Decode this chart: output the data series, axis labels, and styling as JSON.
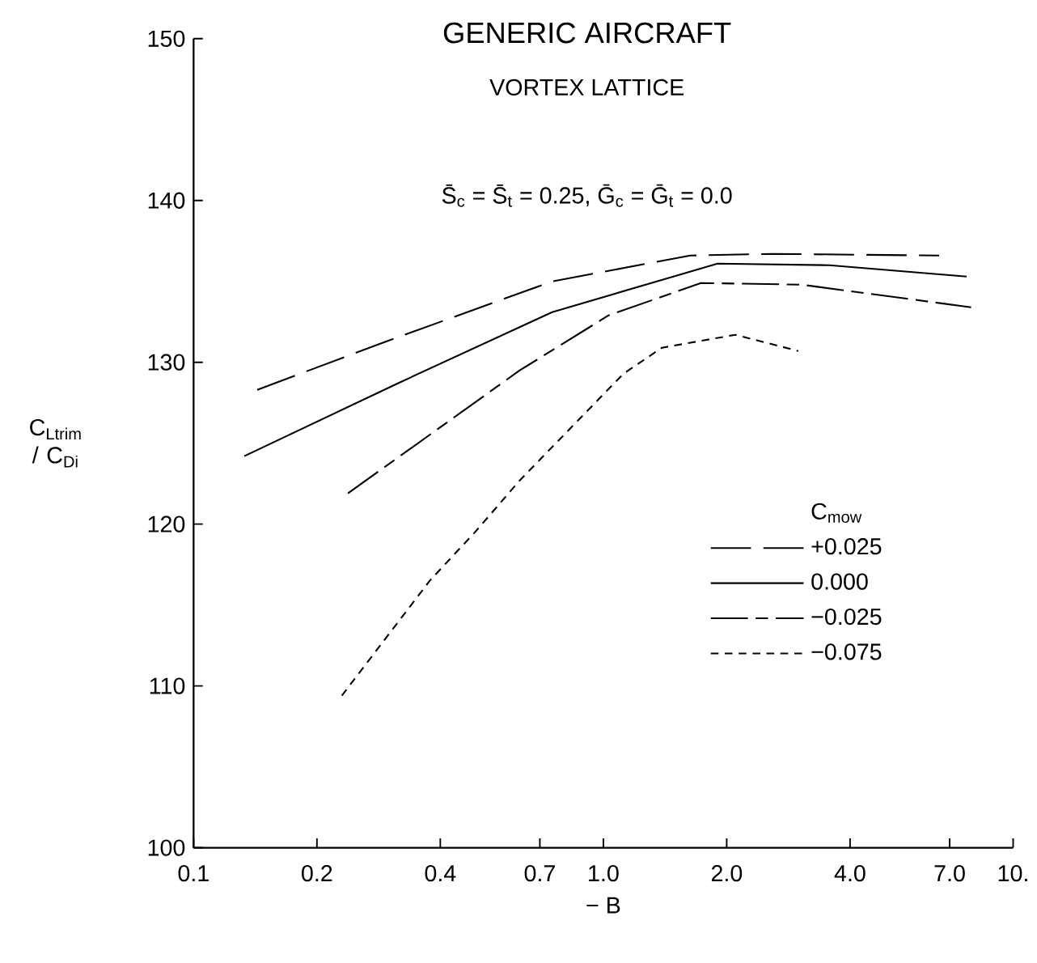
{
  "chart_data": {
    "type": "line",
    "title": "GENERIC AIRCRAFT",
    "subtitle": "VORTEX LATTICE",
    "xlabel": "− B",
    "ylabel": "C$_{Ltrim}$ / C$_{Di}$",
    "legend_title": "C$_{mow}$",
    "annotations": [
      "S̄$_{c}$ = S̄$_{t}$ = 0.25, Ḡ$_{c}$ = Ḡ$_{t}$ = 0.0"
    ],
    "log": "x",
    "grid": false,
    "legend": "bottom right",
    "xlim": [
      0.1,
      10
    ],
    "ylim": [
      100,
      150
    ],
    "xticks": [
      0.1,
      0.2,
      0.4,
      0.7,
      {
        "value": 1,
        "label": "1.0"
      },
      {
        "value": 2,
        "label": "2.0"
      },
      {
        "value": 4,
        "label": "4.0"
      },
      {
        "value": 7,
        "label": "7.0"
      },
      {
        "value": 10,
        "label": "10."
      }
    ],
    "yticks": [
      100,
      110,
      120,
      130,
      140,
      150
    ],
    "series": [
      {
        "name": "+0.025",
        "color": "#000000",
        "line_style": "longdashed",
        "x": [
          0.143,
          0.296,
          0.75,
          1.63,
          2.6,
          6.6
        ],
        "values": [
          128.3,
          131.3,
          135.0,
          136.6,
          136.7,
          136.6
        ]
      },
      {
        "name": "0.000",
        "color": "#000000",
        "line_style": "solid",
        "x": [
          0.133,
          0.315,
          0.75,
          1.9,
          3.56,
          7.7
        ],
        "values": [
          124.2,
          128.7,
          133.1,
          136.1,
          136.0,
          135.3
        ]
      },
      {
        "name": "−0.025",
        "color": "#000000",
        "line_style": "dashdot",
        "x": [
          0.238,
          0.625,
          1.03,
          1.73,
          3.04,
          7.9
        ],
        "values": [
          121.9,
          129.5,
          132.9,
          134.9,
          134.8,
          133.4
        ]
      },
      {
        "name": "−0.075",
        "color": "#000000",
        "line_style": "dashed",
        "x": [
          0.23,
          0.377,
          0.486,
          0.625,
          1.12,
          1.39,
          2.1,
          2.99
        ],
        "values": [
          109.4,
          116.5,
          119.5,
          122.7,
          129.3,
          130.9,
          131.7,
          130.7
        ]
      }
    ]
  }
}
